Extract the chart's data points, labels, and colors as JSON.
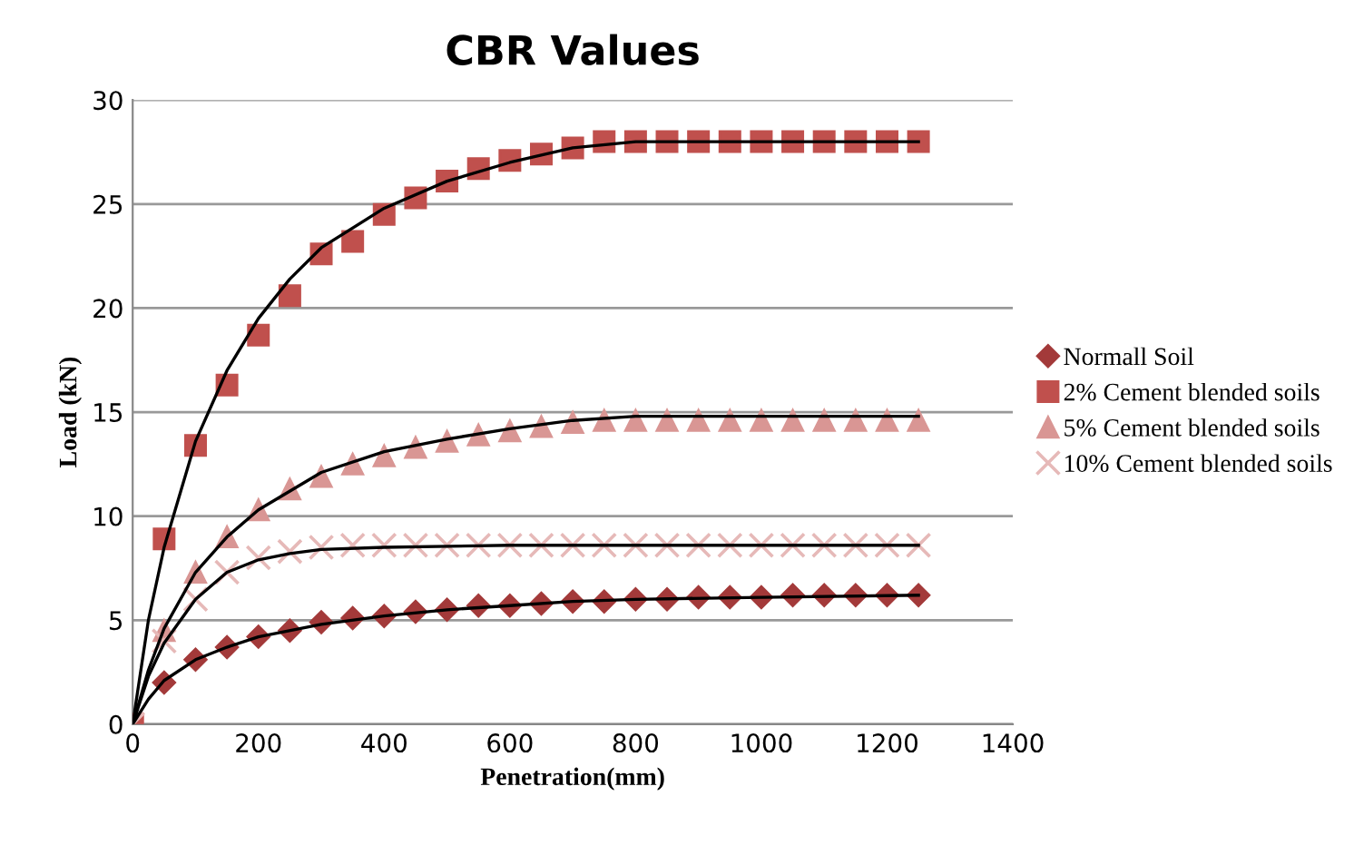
{
  "chart_data": {
    "type": "scatter",
    "title": "CBR Values",
    "xlabel": "Penetration(mm)",
    "ylabel": "Load (kN)",
    "x": [
      0,
      50,
      100,
      150,
      200,
      250,
      300,
      350,
      400,
      450,
      500,
      550,
      600,
      650,
      700,
      750,
      800,
      850,
      900,
      950,
      1000,
      1050,
      1100,
      1150,
      1200,
      1250
    ],
    "series": [
      {
        "name": "Normall Soil",
        "color": "#a33a3a",
        "marker": "diamond",
        "values": [
          null,
          2.0,
          3.1,
          3.7,
          4.2,
          4.5,
          4.9,
          5.1,
          5.2,
          5.4,
          5.5,
          5.7,
          5.7,
          5.8,
          5.9,
          5.9,
          6.0,
          6.0,
          6.1,
          6.1,
          6.1,
          6.2,
          6.2,
          6.2,
          6.2,
          6.2
        ]
      },
      {
        "name": "2% Cement blended soils",
        "color": "#c0504d",
        "marker": "square",
        "values": [
          0,
          8.9,
          13.4,
          16.3,
          18.7,
          20.6,
          22.6,
          23.2,
          24.5,
          25.3,
          26.1,
          26.7,
          27.1,
          27.4,
          27.7,
          28.0,
          28.0,
          28.0,
          28.0,
          28.0,
          28.0,
          28.0,
          28.0,
          28.0,
          28.0,
          28.0
        ]
      },
      {
        "name": "5% Cement blended soils",
        "color": "#d99694",
        "marker": "triangle",
        "values": [
          null,
          4.5,
          7.3,
          9.0,
          10.3,
          11.3,
          11.9,
          12.5,
          12.9,
          13.3,
          13.6,
          13.9,
          14.1,
          14.3,
          14.5,
          14.6,
          14.6,
          14.6,
          14.6,
          14.6,
          14.6,
          14.6,
          14.6,
          14.6,
          14.6,
          14.6
        ]
      },
      {
        "name": "10% Cement blended soils",
        "color": "#e6b9b8",
        "marker": "cross",
        "values": [
          0,
          4.0,
          6.0,
          7.3,
          8.0,
          8.3,
          8.5,
          8.6,
          8.6,
          8.6,
          8.6,
          8.6,
          8.6,
          8.6,
          8.6,
          8.6,
          8.6,
          8.6,
          8.6,
          8.6,
          8.6,
          8.6,
          8.6,
          8.6,
          8.6,
          8.6
        ]
      },
      {
        "type": "line",
        "color": "#000000",
        "marker": "none",
        "x": [
          0,
          25,
          50,
          100,
          150,
          200,
          300,
          400,
          500,
          600,
          700,
          800,
          1000,
          1250
        ],
        "values": [
          0,
          1.2,
          2.1,
          3.1,
          3.7,
          4.2,
          4.8,
          5.2,
          5.5,
          5.7,
          5.9,
          6.0,
          6.1,
          6.2
        ]
      },
      {
        "type": "line",
        "color": "#000000",
        "marker": "none",
        "x": [
          0,
          25,
          50,
          100,
          150,
          200,
          250,
          300,
          400,
          500,
          600,
          700,
          800,
          1000,
          1250
        ],
        "values": [
          0,
          5.0,
          8.5,
          13.6,
          17.0,
          19.5,
          21.4,
          22.9,
          24.8,
          26.1,
          27.0,
          27.7,
          28.0,
          28.0,
          28.0
        ]
      },
      {
        "type": "line",
        "color": "#000000",
        "marker": "none",
        "x": [
          0,
          25,
          50,
          100,
          150,
          200,
          300,
          400,
          500,
          600,
          700,
          800,
          1000,
          1250
        ],
        "values": [
          0,
          2.6,
          4.6,
          7.3,
          9.0,
          10.3,
          12.1,
          13.1,
          13.7,
          14.2,
          14.6,
          14.8,
          14.8,
          14.8
        ]
      },
      {
        "type": "line",
        "color": "#000000",
        "marker": "none",
        "x": [
          0,
          25,
          50,
          100,
          150,
          200,
          250,
          300,
          400,
          600,
          800,
          1000,
          1250
        ],
        "values": [
          0,
          2.3,
          3.9,
          6.0,
          7.3,
          7.9,
          8.2,
          8.4,
          8.5,
          8.6,
          8.6,
          8.6,
          8.6
        ]
      }
    ],
    "xlim": [
      0,
      1400
    ],
    "xticks": [
      0,
      200,
      400,
      600,
      800,
      1000,
      1200,
      1400
    ],
    "ylim": [
      0,
      30
    ],
    "yticks": [
      0,
      5,
      10,
      15,
      20,
      25,
      30
    ],
    "grid": "y",
    "legend": "right"
  }
}
